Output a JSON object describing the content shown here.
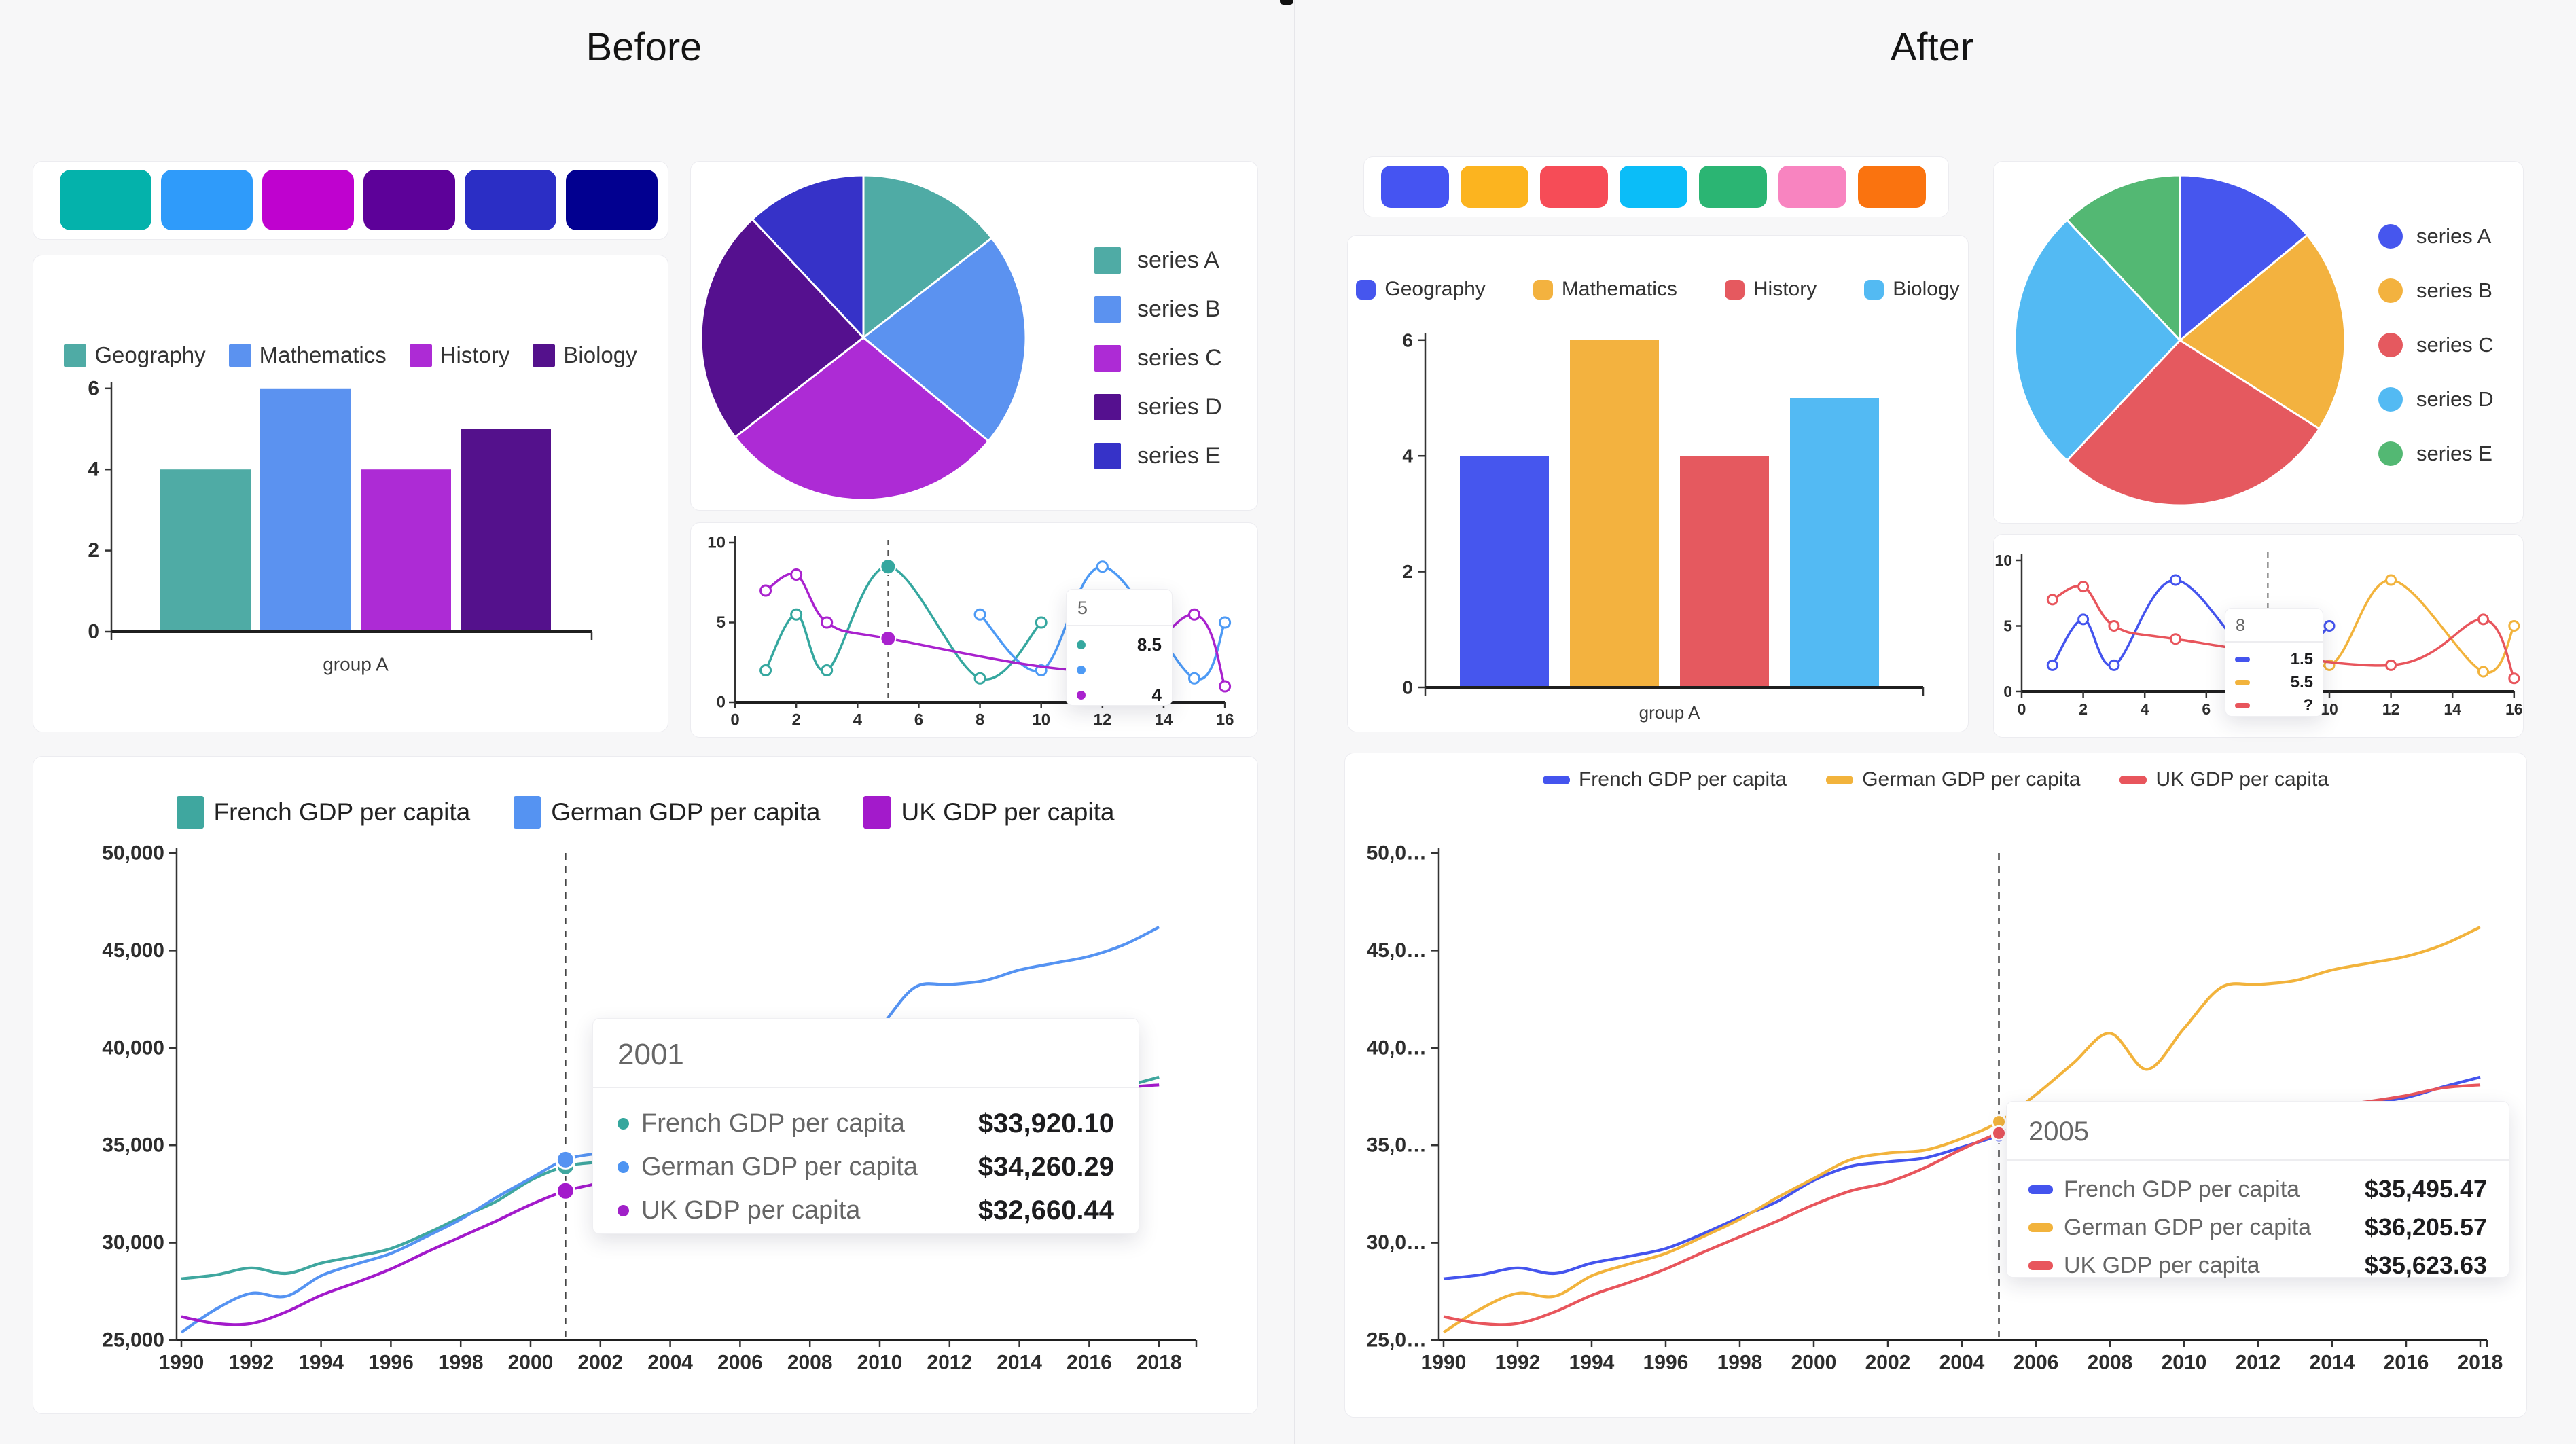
{
  "page": {
    "before_title": "Before",
    "after_title": "After",
    "before_palette": [
      "#04B2AB",
      "#2F9BFA",
      "#BF02CF",
      "#5D0199",
      "#2B2EC5",
      "#020090"
    ],
    "after_palette": [
      "#4554F2",
      "#FCB41F",
      "#F64C57",
      "#0BBDF8",
      "#2BB573",
      "#F884C0",
      "#FA730F"
    ]
  },
  "chart_data": [
    {
      "id": "before-bar",
      "type": "bar",
      "categories": [
        "group A"
      ],
      "xlabel": "group A",
      "ylim": [
        0,
        6
      ],
      "yticks": [
        0,
        2,
        4,
        6
      ],
      "series": [
        {
          "name": "Geography",
          "value": 4,
          "color": "#4FABA5"
        },
        {
          "name": "Mathematics",
          "value": 6,
          "color": "#5B92F0"
        },
        {
          "name": "History",
          "value": 4,
          "color": "#AD2BD5"
        },
        {
          "name": "Biology",
          "value": 5,
          "color": "#54118C"
        }
      ]
    },
    {
      "id": "before-pie",
      "type": "pie",
      "legend_position": "right",
      "labels": [
        "series A",
        "series B",
        "series C",
        "series D",
        "series E"
      ],
      "values": [
        14.5,
        21.5,
        28.5,
        23.5,
        12
      ],
      "colors": [
        "#4FABA5",
        "#5B92F0",
        "#AD2BD5",
        "#55108F",
        "#3632C8"
      ]
    },
    {
      "id": "before-mini-line",
      "type": "line",
      "xlim": [
        0,
        16
      ],
      "ylim": [
        0,
        10
      ],
      "xticks": [
        0,
        2,
        4,
        6,
        8,
        10,
        12,
        14,
        16
      ],
      "yticks": [
        0,
        5,
        10
      ],
      "series": [
        {
          "color": "#35A79F",
          "points": [
            [
              1,
              2
            ],
            [
              2,
              5.5
            ],
            [
              3,
              2
            ],
            [
              5,
              8.5
            ],
            [
              8,
              1.5
            ],
            [
              10,
              5
            ]
          ]
        },
        {
          "color": "#4D9AF5",
          "points": [
            [
              8,
              5.5
            ],
            [
              10,
              2
            ],
            [
              12,
              8.5
            ],
            [
              15,
              1.5
            ],
            [
              16,
              5
            ]
          ]
        },
        {
          "color": "#A922CE",
          "points": [
            [
              1,
              7
            ],
            [
              2,
              8
            ],
            [
              3,
              5
            ],
            [
              5,
              4
            ],
            [
              12,
              2
            ],
            [
              15,
              5.5
            ],
            [
              16,
              1
            ]
          ]
        }
      ],
      "marker_line_x": 5,
      "highlight": [
        [
          0,
          5,
          8.5
        ],
        [
          2,
          5,
          4
        ]
      ],
      "tooltip": {
        "title": "5",
        "rows": [
          {
            "color": "#35A79F",
            "value": "8.5"
          },
          {
            "color": "#4D9AF5",
            "value": ""
          },
          {
            "color": "#A922CE",
            "value": "4"
          }
        ]
      }
    },
    {
      "id": "before-gdp",
      "type": "line",
      "x_start": 1990,
      "xticks": [
        1990,
        1992,
        1994,
        1996,
        1998,
        2000,
        2002,
        2004,
        2006,
        2008,
        2010,
        2012,
        2014,
        2016,
        2018
      ],
      "ylim": [
        25000,
        50000
      ],
      "ytick_labels": [
        "25,000",
        "30,000",
        "35,000",
        "40,000",
        "45,000",
        "50,000"
      ],
      "series": [
        {
          "name": "French GDP per capita",
          "color": "#3FA79F",
          "values": [
            28150,
            28350,
            28700,
            28420,
            28950,
            29300,
            29700,
            30450,
            31300,
            32100,
            33200,
            33920,
            34150,
            34350,
            34900,
            35495,
            36100,
            36700,
            36850,
            35700,
            36200,
            36600,
            36550,
            36700,
            36950,
            37200,
            37450,
            38000,
            38500
          ]
        },
        {
          "name": "German GDP per capita",
          "color": "#5593F2",
          "values": [
            25400,
            26600,
            27400,
            27250,
            28300,
            28900,
            29450,
            30300,
            31200,
            32300,
            33300,
            34260,
            34600,
            34750,
            35350,
            36206,
            37600,
            39200,
            40750,
            38900,
            41000,
            43100,
            43250,
            43450,
            44000,
            44350,
            44700,
            45300,
            46200
          ]
        },
        {
          "name": "UK GDP per capita",
          "color": "#A31ACB",
          "values": [
            26200,
            25850,
            25850,
            26450,
            27300,
            27950,
            28650,
            29500,
            30300,
            31100,
            31950,
            32660,
            33100,
            33850,
            34800,
            35624,
            36200,
            36700,
            36800,
            35500,
            35900,
            36100,
            36350,
            36600,
            37000,
            37250,
            37550,
            37950,
            38100
          ]
        }
      ],
      "marker_line_x": 2001,
      "tooltip": {
        "title": "2001",
        "rows": [
          {
            "label": "French GDP per capita",
            "color": "#35A79D",
            "value": "$33,920.10"
          },
          {
            "label": "German GDP per capita",
            "color": "#4D94F2",
            "value": "$34,260.29"
          },
          {
            "label": "UK GDP per capita",
            "color": "#A020C8",
            "value": "$32,660.44"
          }
        ]
      }
    },
    {
      "id": "after-bar",
      "type": "bar",
      "categories": [
        "group A"
      ],
      "xlabel": "group A",
      "ylim": [
        0,
        6
      ],
      "yticks": [
        0,
        2,
        4,
        6
      ],
      "series": [
        {
          "name": "Geography",
          "value": 4,
          "color": "#4656EE"
        },
        {
          "name": "Mathematics",
          "value": 6,
          "color": "#F3B23F"
        },
        {
          "name": "History",
          "value": 4,
          "color": "#E5595F"
        },
        {
          "name": "Biology",
          "value": 5,
          "color": "#53BAF3"
        }
      ]
    },
    {
      "id": "after-pie",
      "type": "pie",
      "legend_position": "right",
      "labels": [
        "series A",
        "series B",
        "series C",
        "series D",
        "series E"
      ],
      "values": [
        14,
        20,
        28,
        26,
        12
      ],
      "colors": [
        "#4656EE",
        "#F3B23F",
        "#E5595F",
        "#53BAF3",
        "#53B873"
      ]
    },
    {
      "id": "after-mini-line",
      "type": "line",
      "xlim": [
        0,
        16
      ],
      "ylim": [
        0,
        10
      ],
      "xticks": [
        0,
        2,
        4,
        6,
        8,
        10,
        12,
        14,
        16
      ],
      "yticks": [
        0,
        5,
        10
      ],
      "series": [
        {
          "color": "#4454EE",
          "points": [
            [
              1,
              2
            ],
            [
              2,
              5.5
            ],
            [
              3,
              2
            ],
            [
              5,
              8.5
            ],
            [
              8,
              1.5
            ],
            [
              10,
              5
            ]
          ]
        },
        {
          "color": "#F2B33C",
          "points": [
            [
              8,
              5.5
            ],
            [
              10,
              2
            ],
            [
              12,
              8.5
            ],
            [
              15,
              1.5
            ],
            [
              16,
              5
            ]
          ]
        },
        {
          "color": "#E8555C",
          "points": [
            [
              1,
              7
            ],
            [
              2,
              8
            ],
            [
              3,
              5
            ],
            [
              5,
              4
            ],
            [
              12,
              2
            ],
            [
              15,
              5.5
            ],
            [
              16,
              1
            ]
          ]
        }
      ],
      "marker_line_x": 8,
      "highlight": [],
      "tooltip": {
        "title": "8",
        "rows": [
          {
            "color": "#4454EE",
            "value": "1.5"
          },
          {
            "color": "#F2B33C",
            "value": "5.5"
          },
          {
            "color": "#E8555C",
            "value": "?"
          }
        ]
      }
    },
    {
      "id": "after-gdp",
      "type": "line",
      "x_start": 1990,
      "xticks": [
        1990,
        1992,
        1994,
        1996,
        1998,
        2000,
        2002,
        2004,
        2006,
        2008,
        2010,
        2012,
        2014,
        2016,
        2018
      ],
      "ylim": [
        25000,
        50000
      ],
      "ytick_labels": [
        "25,0…",
        "30,0…",
        "35,0…",
        "40,0…",
        "45,0…",
        "50,0…"
      ],
      "series": [
        {
          "name": "French GDP per capita",
          "color": "#4454EE",
          "values": [
            28150,
            28350,
            28700,
            28420,
            28950,
            29300,
            29700,
            30450,
            31300,
            32100,
            33200,
            33920,
            34150,
            34350,
            34900,
            35495,
            36100,
            36700,
            36850,
            35700,
            36200,
            36600,
            36550,
            36700,
            36950,
            37200,
            37450,
            38000,
            38500
          ]
        },
        {
          "name": "German GDP per capita",
          "color": "#F2B33C",
          "values": [
            25400,
            26600,
            27400,
            27250,
            28300,
            28900,
            29450,
            30300,
            31200,
            32300,
            33300,
            34260,
            34600,
            34750,
            35350,
            36206,
            37600,
            39200,
            40750,
            38900,
            41000,
            43100,
            43250,
            43450,
            44000,
            44350,
            44700,
            45300,
            46200
          ]
        },
        {
          "name": "UK GDP per capita",
          "color": "#E8555C",
          "values": [
            26200,
            25850,
            25850,
            26450,
            27300,
            27950,
            28650,
            29500,
            30300,
            31100,
            31950,
            32660,
            33100,
            33850,
            34800,
            35624,
            36200,
            36700,
            36800,
            35500,
            35900,
            36100,
            36350,
            36600,
            37000,
            37250,
            37550,
            37950,
            38100
          ]
        }
      ],
      "marker_line_x": 2005,
      "tooltip": {
        "title": "2005",
        "rows": [
          {
            "label": "French GDP per capita",
            "color": "#4454EE",
            "value": "$35,495.47"
          },
          {
            "label": "German GDP per capita",
            "color": "#F2B33C",
            "value": "$36,205.57"
          },
          {
            "label": "UK GDP per capita",
            "color": "#E8555C",
            "value": "$35,623.63"
          }
        ]
      }
    }
  ]
}
